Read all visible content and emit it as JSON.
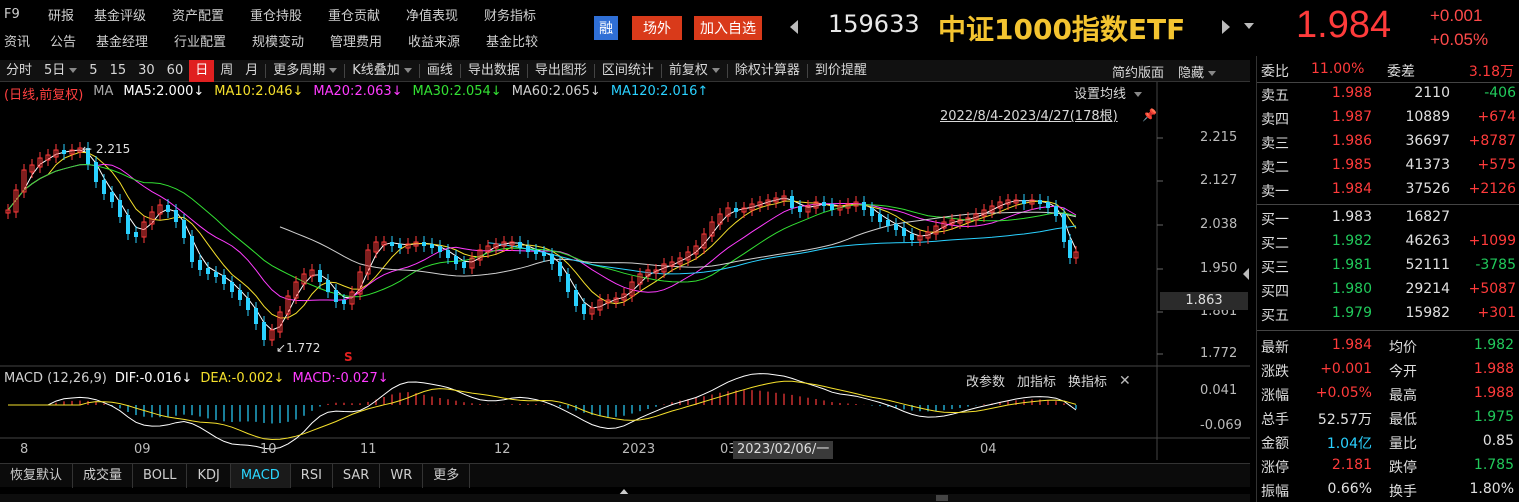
{
  "nav": {
    "row1": [
      "F9",
      "研报",
      "基金评级",
      "资产配置",
      "重仓持股",
      "重仓贡献",
      "净值表现",
      "财务指标"
    ],
    "row2": [
      "资讯",
      "公告",
      "基金经理",
      "行业配置",
      "规模变动",
      "管理费用",
      "收益来源",
      "基金比较"
    ]
  },
  "header": {
    "rong": "融",
    "changwai": "场外",
    "add_fav": "加入自选",
    "code": "159633",
    "name": "中证1000指数ETF",
    "price": "1.984",
    "change": "+0.001",
    "change_pct": "+0.05%",
    "colors": {
      "rong_bg": "#2f6fd6",
      "changwai_bg": "#d93a1a",
      "addfav_bg": "#d93a1a",
      "up": "#ff3b3b",
      "down": "#21c95b",
      "gold": "#f4c430"
    }
  },
  "toolbar": {
    "items": [
      "分时",
      "5日",
      "5",
      "15",
      "30",
      "60",
      "日",
      "周",
      "月",
      "更多周期",
      "K线叠加",
      "画线",
      "导出数据",
      "导出图形",
      "区间统计",
      "前复权",
      "除权计算器",
      "到价提醒"
    ],
    "active": "日",
    "right": [
      "简约版面",
      "隐藏"
    ]
  },
  "ma": {
    "prefix": "(日线,前复权)",
    "label": "MA",
    "items": [
      {
        "text": "MA5:2.000↓",
        "color": "#ffffff"
      },
      {
        "text": "MA10:2.046↓",
        "color": "#f5e02c"
      },
      {
        "text": "MA20:2.063↓",
        "color": "#ff3cff"
      },
      {
        "text": "MA30:2.054↓",
        "color": "#33e033"
      },
      {
        "text": "MA60:2.065↓",
        "color": "#cfcfcf"
      },
      {
        "text": "MA120:2.016↑",
        "color": "#2ad1ff"
      }
    ],
    "settings": "设置均线",
    "range": "2022/8/4-2023/4/27(178根)"
  },
  "price_axis": {
    "labels": [
      "2.215",
      "2.127",
      "2.038",
      "1.950",
      "1.861",
      "1.772"
    ],
    "current": "1.863"
  },
  "annotations": {
    "high": "2.215",
    "low": "1.772",
    "marker": "S"
  },
  "macd": {
    "title": "MACD (12,26,9)",
    "dif": "DIF:-0.016↓",
    "dea": "DEA:-0.002↓",
    "macd": "MACD:-0.027↓",
    "buttons": [
      "改参数",
      "加指标",
      "换指标"
    ],
    "axis": [
      "0.041",
      "-0.069"
    ]
  },
  "date_axis": {
    "labels": [
      "8",
      "09",
      "10",
      "11",
      "12",
      "2023",
      "03",
      "04"
    ],
    "cursor": "2023/02/06/一"
  },
  "bottom_tabs": {
    "items": [
      "恢复默认",
      "成交量",
      "BOLL",
      "KDJ",
      "MACD",
      "RSI",
      "SAR",
      "WR",
      "更多"
    ],
    "active": "MACD"
  },
  "orderbook": {
    "weibi": {
      "label": "委比",
      "value": "11.00%",
      "label2": "委差",
      "value2": "3.18万"
    },
    "asks": [
      {
        "label": "卖五",
        "price": "1.988",
        "vol": "2110",
        "chg": "-406"
      },
      {
        "label": "卖四",
        "price": "1.987",
        "vol": "10889",
        "chg": "+674"
      },
      {
        "label": "卖三",
        "price": "1.986",
        "vol": "36697",
        "chg": "+8787"
      },
      {
        "label": "卖二",
        "price": "1.985",
        "vol": "41373",
        "chg": "+575"
      },
      {
        "label": "卖一",
        "price": "1.984",
        "vol": "37526",
        "chg": "+2126"
      }
    ],
    "bids": [
      {
        "label": "买一",
        "price": "1.983",
        "vol": "16827",
        "chg": ""
      },
      {
        "label": "买二",
        "price": "1.982",
        "vol": "46263",
        "chg": "+1099"
      },
      {
        "label": "买三",
        "price": "1.981",
        "vol": "52111",
        "chg": "-3785"
      },
      {
        "label": "买四",
        "price": "1.980",
        "vol": "29214",
        "chg": "+5087"
      },
      {
        "label": "买五",
        "price": "1.979",
        "vol": "15982",
        "chg": "+301"
      }
    ]
  },
  "stats": [
    {
      "l1": "最新",
      "v1": "1.984",
      "c1": "#ff3b3b",
      "l2": "均价",
      "v2": "1.982",
      "c2": "#21c95b"
    },
    {
      "l1": "涨跌",
      "v1": "+0.001",
      "c1": "#ff3b3b",
      "l2": "今开",
      "v2": "1.988",
      "c2": "#ff3b3b"
    },
    {
      "l1": "涨幅",
      "v1": "+0.05%",
      "c1": "#ff3b3b",
      "l2": "最高",
      "v2": "1.988",
      "c2": "#ff3b3b"
    },
    {
      "l1": "总手",
      "v1": "52.57万",
      "c1": "#e0e0e0",
      "l2": "最低",
      "v2": "1.975",
      "c2": "#21c95b"
    },
    {
      "l1": "金额",
      "v1": "1.04亿",
      "c1": "#2ad1ff",
      "l2": "量比",
      "v2": "0.85",
      "c2": "#e0e0e0"
    },
    {
      "l1": "涨停",
      "v1": "2.181",
      "c1": "#ff3b3b",
      "l2": "跌停",
      "v2": "1.785",
      "c2": "#21c95b"
    },
    {
      "l1": "振幅",
      "v1": "0.66%",
      "c1": "#e0e0e0",
      "l2": "换手",
      "v2": "1.80%",
      "c2": "#e0e0e0"
    }
  ]
}
